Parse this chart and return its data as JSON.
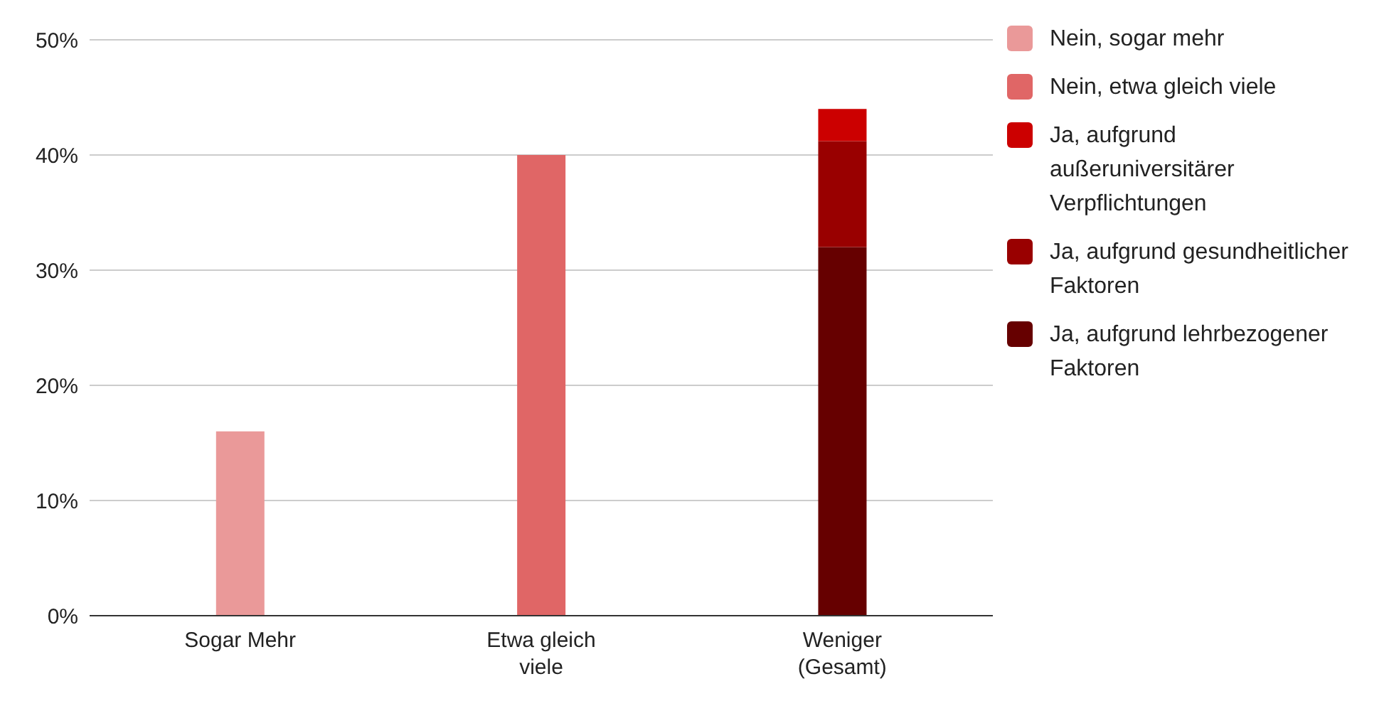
{
  "chart_data": {
    "type": "bar",
    "stacked": true,
    "categories": [
      "Sogar Mehr",
      "Etwa gleich viele",
      "Weniger (Gesamt)"
    ],
    "series": [
      {
        "name": "Ja, aufgrund lehrbezogener Faktoren",
        "color": "#660000",
        "values": [
          null,
          null,
          32
        ]
      },
      {
        "name": "Ja, aufgrund gesundheitlicher Faktoren",
        "color": "#990000",
        "values": [
          null,
          null,
          9.2
        ]
      },
      {
        "name": "Ja, aufgrund außeruniversitärer Verpflichtungen",
        "color": "#cc0000",
        "values": [
          null,
          null,
          2.8
        ]
      },
      {
        "name": "Nein, etwa gleich viele",
        "color": "#e06666",
        "values": [
          null,
          40,
          null
        ]
      },
      {
        "name": "Nein, sogar mehr",
        "color": "#ea9999",
        "values": [
          16,
          null,
          null
        ]
      }
    ],
    "ylim": [
      0,
      50
    ],
    "yticks": [
      {
        "value": 0,
        "label": "0%"
      },
      {
        "value": 10,
        "label": "10%"
      },
      {
        "value": 20,
        "label": "20%"
      },
      {
        "value": 30,
        "label": "30%"
      },
      {
        "value": 40,
        "label": "40%"
      },
      {
        "value": 50,
        "label": "50%"
      }
    ],
    "grid": "y",
    "legend": "right"
  }
}
